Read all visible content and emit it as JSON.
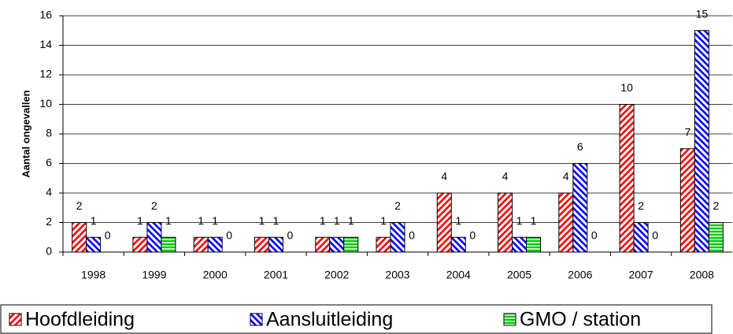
{
  "chart_data": {
    "type": "bar",
    "ylabel": "Aantal ongevallen",
    "categories": [
      "1998",
      "1999",
      "2000",
      "2001",
      "2002",
      "2003",
      "2004",
      "2005",
      "2006",
      "2007",
      "2008"
    ],
    "series": [
      {
        "name": "Hoofdleiding",
        "color": "#ff0000",
        "values": [
          2,
          1,
          1,
          1,
          1,
          1,
          4,
          4,
          4,
          10,
          7
        ]
      },
      {
        "name": "Aansluitleiding",
        "color": "#0000ff",
        "values": [
          1,
          2,
          1,
          1,
          1,
          2,
          1,
          1,
          6,
          2,
          15
        ]
      },
      {
        "name": "GMO / station",
        "color": "#00cc00",
        "values": [
          0,
          1,
          0,
          0,
          1,
          0,
          0,
          1,
          0,
          0,
          2
        ]
      }
    ],
    "ylim": [
      0,
      16
    ],
    "yticks": [
      0,
      2,
      4,
      6,
      8,
      10,
      12,
      14,
      16
    ],
    "grid": true
  }
}
